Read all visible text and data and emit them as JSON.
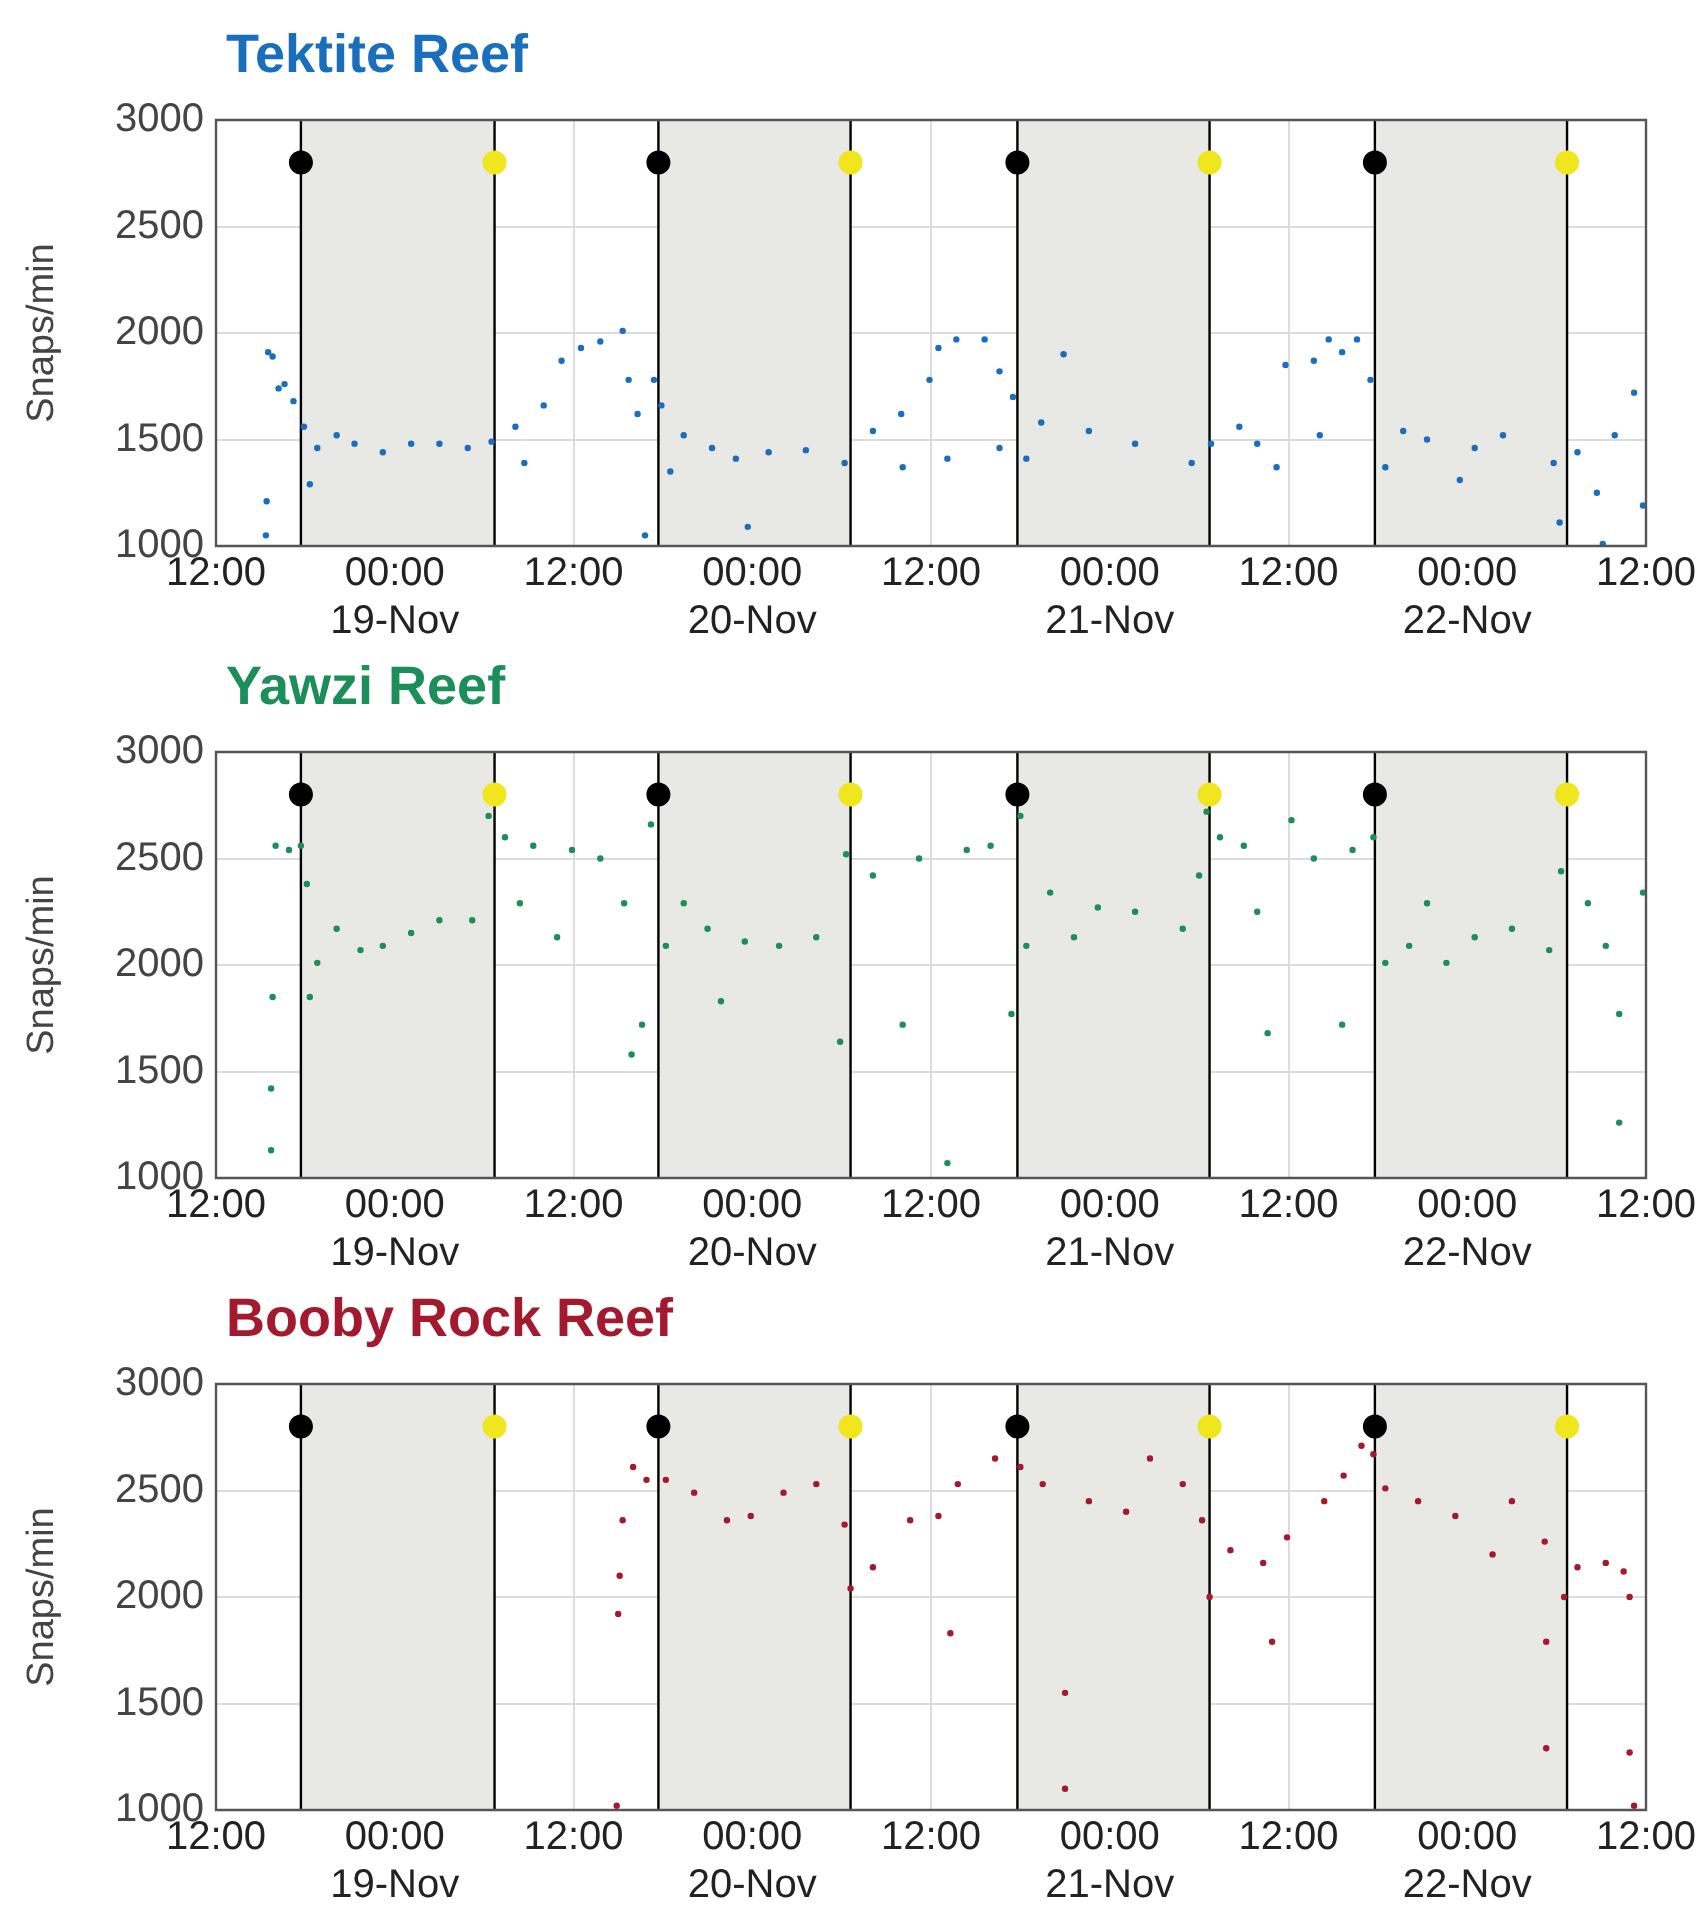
{
  "chart_data": [
    {
      "type": "scatter",
      "title": "Tektite Reef",
      "ylabel": "Snaps/min",
      "xlim": [
        "--11-18T12:00",
        "--11-22T12:00"
      ],
      "ylim": [
        1000,
        3000
      ],
      "yticks": [
        1000,
        1500,
        2000,
        2500,
        3000
      ],
      "xticks": [
        {
          "value": "--11-18T12:00",
          "label": "12:00"
        },
        {
          "value": "--11-19T00:00",
          "label": "00:00\n19-Nov"
        },
        {
          "value": "--11-19T12:00",
          "label": "12:00"
        },
        {
          "value": "--11-20T00:00",
          "label": "00:00\n20-Nov"
        },
        {
          "value": "--11-20T12:00",
          "label": "12:00"
        },
        {
          "value": "--11-21T00:00",
          "label": "00:00\n21-Nov"
        },
        {
          "value": "--11-21T12:00",
          "label": "12:00"
        },
        {
          "value": "--11-22T00:00",
          "label": "00:00\n22-Nov"
        },
        {
          "value": "--11-22T12:00",
          "label": "12:00"
        }
      ],
      "grid": true,
      "marker": "circle",
      "bands": [
        {
          "axis": "x",
          "from": "--11-18T17:42",
          "to": "--11-19T06:42",
          "color": "#e8e8e4"
        },
        {
          "axis": "x",
          "from": "--11-19T17:42",
          "to": "--11-20T06:36",
          "color": "#e8e8e4"
        },
        {
          "axis": "x",
          "from": "--11-20T17:48",
          "to": "--11-21T06:42",
          "color": "#e8e8e4"
        },
        {
          "axis": "x",
          "from": "--11-21T17:48",
          "to": "--11-22T06:42",
          "color": "#e8e8e4"
        }
      ],
      "series": [
        {
          "color": "#1a6fbd",
          "x": [
            "--11-18T15:21",
            "--11-18T15:24",
            "--11-18T15:30",
            "--11-18T15:48",
            "--11-18T16:12",
            "--11-18T16:36",
            "--11-18T17:12",
            "--11-18T17:54",
            "--11-18T18:18",
            "--11-18T18:48",
            "--11-18T20:06",
            "--11-18T21:18",
            "--11-18T23:12",
            "--11-19T01:06",
            "--11-19T03:00",
            "--11-19T04:54",
            "--11-19T06:30",
            "--11-19T08:06",
            "--11-19T08:42",
            "--11-19T10:00",
            "--11-19T11:12",
            "--11-19T12:30",
            "--11-19T13:48",
            "--11-19T15:18",
            "--11-19T15:42",
            "--11-19T16:18",
            "--11-19T16:48",
            "--11-19T17:24",
            "--11-19T17:54",
            "--11-19T18:30",
            "--11-19T19:24",
            "--11-19T21:18",
            "--11-19T22:54",
            "--11-19T23:42",
            "--11-20T01:06",
            "--11-20T03:36",
            "--11-20T06:12",
            "--11-20T08:06",
            "--11-20T10:00",
            "--11-20T10:06",
            "--11-20T11:54",
            "--11-20T12:30",
            "--11-20T13:06",
            "--11-20T13:42",
            "--11-20T15:36",
            "--11-20T16:36",
            "--11-20T16:36",
            "--11-20T17:30",
            "--11-20T18:24",
            "--11-20T19:24",
            "--11-20T20:54",
            "--11-20T22:36",
            "--11-21T01:42",
            "--11-21T05:30",
            "--11-21T06:48",
            "--11-21T08:42",
            "--11-21T09:54",
            "--11-21T11:12",
            "--11-21T11:48",
            "--11-21T13:42",
            "--11-21T14:06",
            "--11-21T14:42",
            "--11-21T15:36",
            "--11-21T16:36",
            "--11-21T17:30",
            "--11-21T18:30",
            "--11-21T19:42",
            "--11-21T21:18",
            "--11-21T23:30",
            "--11-22T00:30",
            "--11-22T02:24",
            "--11-22T05:48",
            "--11-22T06:12",
            "--11-22T07:24",
            "--11-22T08:42",
            "--11-22T09:06",
            "--11-22T09:54",
            "--11-22T11:12",
            "--11-22T11:48"
          ],
          "values": [
            1050,
            1210,
            1910,
            1890,
            1740,
            1760,
            1680,
            1560,
            1290,
            1460,
            1520,
            1480,
            1440,
            1480,
            1480,
            1460,
            1490,
            1560,
            1390,
            1660,
            1870,
            1930,
            1960,
            2010,
            1780,
            1620,
            1050,
            1780,
            1660,
            1350,
            1520,
            1460,
            1410,
            1090,
            1440,
            1450,
            1390,
            1540,
            1620,
            1370,
            1780,
            1930,
            1410,
            1970,
            1970,
            1820,
            1460,
            1700,
            1410,
            1580,
            1900,
            1540,
            1480,
            1390,
            1480,
            1560,
            1480,
            1370,
            1850,
            1870,
            1520,
            1970,
            1910,
            1970,
            1780,
            1370,
            1540,
            1500,
            1310,
            1460,
            1520,
            1390,
            1110,
            1440,
            1250,
            1010,
            1520,
            1720,
            1190
          ]
        },
        {
          "color": "#000000",
          "x": [
            "--11-18T17:42",
            "--11-19T17:42",
            "--11-20T17:48",
            "--11-21T17:48"
          ],
          "values": [
            2800,
            2800,
            2800,
            2800
          ]
        },
        {
          "color": "#f0e61e",
          "x": [
            "--11-19T06:42",
            "--11-20T06:36",
            "--11-21T06:42",
            "--11-22T06:42"
          ],
          "values": [
            2800,
            2800,
            2800,
            2800
          ]
        }
      ]
    },
    {
      "type": "scatter",
      "title": "Yawzi Reef",
      "ylabel": "Snaps/min",
      "xlim": [
        "--11-18T12:00",
        "--11-22T12:00"
      ],
      "ylim": [
        1000,
        3000
      ],
      "yticks": [
        1000,
        1500,
        2000,
        2500,
        3000
      ],
      "xticks": [
        {
          "value": "--11-18T12:00",
          "label": "12:00"
        },
        {
          "value": "--11-19T00:00",
          "label": "00:00\n19-Nov"
        },
        {
          "value": "--11-19T12:00",
          "label": "12:00"
        },
        {
          "value": "--11-20T00:00",
          "label": "00:00\n20-Nov"
        },
        {
          "value": "--11-20T12:00",
          "label": "12:00"
        },
        {
          "value": "--11-21T00:00",
          "label": "00:00\n21-Nov"
        },
        {
          "value": "--11-21T12:00",
          "label": "12:00"
        },
        {
          "value": "--11-22T00:00",
          "label": "00:00\n22-Nov"
        },
        {
          "value": "--11-22T12:00",
          "label": "12:00"
        }
      ],
      "grid": true,
      "marker": "circle",
      "bands": [
        {
          "axis": "x",
          "from": "--11-18T17:42",
          "to": "--11-19T06:42",
          "color": "#e8e8e4"
        },
        {
          "axis": "x",
          "from": "--11-19T17:42",
          "to": "--11-20T06:36",
          "color": "#e8e8e4"
        },
        {
          "axis": "x",
          "from": "--11-20T17:48",
          "to": "--11-21T06:42",
          "color": "#e8e8e4"
        },
        {
          "axis": "x",
          "from": "--11-21T17:48",
          "to": "--11-22T06:42",
          "color": "#e8e8e4"
        }
      ],
      "series": [
        {
          "color": "#1b8e5a",
          "x": [
            "--11-18T15:42",
            "--11-18T15:42",
            "--11-18T15:48",
            "--11-18T16:00",
            "--11-18T16:54",
            "--11-18T17:42",
            "--11-18T18:06",
            "--11-18T18:18",
            "--11-18T18:48",
            "--11-18T20:06",
            "--11-18T21:42",
            "--11-18T23:12",
            "--11-19T01:06",
            "--11-19T03:00",
            "--11-19T05:12",
            "--11-19T06:18",
            "--11-19T07:24",
            "--11-19T08:24",
            "--11-19T09:18",
            "--11-19T10:54",
            "--11-19T11:54",
            "--11-19T13:48",
            "--11-19T15:24",
            "--11-19T15:54",
            "--11-19T16:36",
            "--11-19T17:12",
            "--11-19T18:12",
            "--11-19T19:24",
            "--11-19T21:00",
            "--11-19T21:54",
            "--11-19T23:30",
            "--11-20T01:48",
            "--11-20T04:18",
            "--11-20T05:54",
            "--11-20T06:18",
            "--11-20T08:06",
            "--11-20T10:06",
            "--11-20T11:12",
            "--11-20T13:06",
            "--11-20T14:24",
            "--11-20T16:00",
            "--11-20T17:24",
            "--11-20T18:00",
            "--11-20T18:24",
            "--11-20T20:00",
            "--11-20T21:36",
            "--11-20T23:12",
            "--11-21T01:42",
            "--11-21T04:54",
            "--11-21T06:00",
            "--11-21T06:30",
            "--11-21T07:24",
            "--11-21T09:00",
            "--11-21T09:54",
            "--11-21T10:36",
            "--11-21T12:12",
            "--11-21T13:42",
            "--11-21T15:36",
            "--11-21T16:18",
            "--11-21T17:42",
            "--11-21T18:30",
            "--11-21T20:06",
            "--11-21T21:18",
            "--11-21T22:36",
            "--11-22T00:30",
            "--11-22T03:00",
            "--11-22T05:30",
            "--11-22T06:18",
            "--11-22T08:06",
            "--11-22T09:18",
            "--11-22T10:12",
            "--11-22T10:12",
            "--11-22T11:48"
          ],
          "values": [
            1130,
            1420,
            1850,
            2560,
            2540,
            2560,
            2380,
            1850,
            2010,
            2170,
            2070,
            2090,
            2150,
            2210,
            2210,
            2700,
            2600,
            2290,
            2560,
            2130,
            2540,
            2500,
            2290,
            1580,
            1720,
            2660,
            2090,
            2290,
            2170,
            1830,
            2110,
            2090,
            2130,
            1640,
            2520,
            2420,
            1720,
            2500,
            1070,
            2540,
            2560,
            1770,
            2700,
            2090,
            2340,
            2130,
            2270,
            2250,
            2170,
            2420,
            2720,
            2600,
            2560,
            2250,
            1680,
            2680,
            2500,
            1720,
            2540,
            2600,
            2010,
            2090,
            2290,
            2010,
            2130,
            2170,
            2070,
            2440,
            2290,
            2090,
            1770,
            1260,
            2340
          ]
        },
        {
          "color": "#000000",
          "x": [
            "--11-18T17:42",
            "--11-19T17:42",
            "--11-20T17:48",
            "--11-21T17:48"
          ],
          "values": [
            2800,
            2800,
            2800,
            2800
          ]
        },
        {
          "color": "#f0e61e",
          "x": [
            "--11-19T06:42",
            "--11-20T06:36",
            "--11-21T06:42",
            "--11-22T06:42"
          ],
          "values": [
            2800,
            2800,
            2800,
            2800
          ]
        }
      ]
    },
    {
      "type": "scatter",
      "title": "Booby Rock Reef",
      "ylabel": "Snaps/min",
      "xlim": [
        "--11-18T12:00",
        "--11-22T12:00"
      ],
      "ylim": [
        1000,
        3000
      ],
      "yticks": [
        1000,
        1500,
        2000,
        2500,
        3000
      ],
      "xticks": [
        {
          "value": "--11-18T12:00",
          "label": "12:00"
        },
        {
          "value": "--11-19T00:00",
          "label": "00:00\n19-Nov"
        },
        {
          "value": "--11-19T12:00",
          "label": "12:00"
        },
        {
          "value": "--11-20T00:00",
          "label": "00:00\n20-Nov"
        },
        {
          "value": "--11-20T12:00",
          "label": "12:00"
        },
        {
          "value": "--11-21T00:00",
          "label": "00:00\n21-Nov"
        },
        {
          "value": "--11-21T12:00",
          "label": "12:00"
        },
        {
          "value": "--11-22T00:00",
          "label": "00:00\n22-Nov"
        },
        {
          "value": "--11-22T12:00",
          "label": "12:00"
        }
      ],
      "grid": true,
      "marker": "circle",
      "bands": [
        {
          "axis": "x",
          "from": "--11-18T17:42",
          "to": "--11-19T06:42",
          "color": "#e8e8e4"
        },
        {
          "axis": "x",
          "from": "--11-19T17:42",
          "to": "--11-20T06:36",
          "color": "#e8e8e4"
        },
        {
          "axis": "x",
          "from": "--11-20T17:48",
          "to": "--11-21T06:42",
          "color": "#e8e8e4"
        },
        {
          "axis": "x",
          "from": "--11-21T17:48",
          "to": "--11-22T06:42",
          "color": "#e8e8e4"
        }
      ],
      "series": [
        {
          "color": "#a3192e",
          "x": [
            "--11-19T14:54",
            "--11-19T15:00",
            "--11-19T15:06",
            "--11-19T15:18",
            "--11-19T16:00",
            "--11-19T16:54",
            "--11-19T18:12",
            "--11-19T20:06",
            "--11-19T22:18",
            "--11-19T23:54",
            "--11-20T02:06",
            "--11-20T04:18",
            "--11-20T06:12",
            "--11-20T06:36",
            "--11-20T08:06",
            "--11-20T10:36",
            "--11-20T12:30",
            "--11-20T13:18",
            "--11-20T13:48",
            "--11-20T16:18",
            "--11-20T18:00",
            "--11-20T19:30",
            "--11-20T21:00",
            "--11-20T21:00",
            "--11-20T22:36",
            "--11-21T01:06",
            "--11-21T02:42",
            "--11-21T04:54",
            "--11-21T06:12",
            "--11-21T06:42",
            "--11-21T08:06",
            "--11-21T10:18",
            "--11-21T10:54",
            "--11-21T11:54",
            "--11-21T14:24",
            "--11-21T15:42",
            "--11-21T16:54",
            "--11-21T17:42",
            "--11-21T18:30",
            "--11-21T20:42",
            "--11-21T23:12",
            "--11-22T01:42",
            "--11-22T03:00",
            "--11-22T05:12",
            "--11-22T05:18",
            "--11-22T05:18",
            "--11-22T06:30",
            "--11-22T07:24",
            "--11-22T09:18",
            "--11-22T10:30",
            "--11-22T10:54",
            "--11-22T10:54",
            "--11-22T11:12"
          ],
          "values": [
            1020,
            1920,
            2100,
            2360,
            2610,
            2550,
            2550,
            2490,
            2360,
            2380,
            2490,
            2530,
            2340,
            2040,
            2140,
            2360,
            2380,
            1830,
            2530,
            2650,
            2610,
            2530,
            1100,
            1550,
            2450,
            2400,
            2650,
            2530,
            2360,
            2000,
            2220,
            2160,
            1790,
            2280,
            2450,
            2570,
            2710,
            2670,
            2510,
            2450,
            2380,
            2200,
            2450,
            2260,
            1790,
            1290,
            2000,
            2140,
            2160,
            2120,
            2000,
            1270,
            1020
          ]
        },
        {
          "color": "#000000",
          "x": [
            "--11-18T17:42",
            "--11-19T17:42",
            "--11-20T17:48",
            "--11-21T17:48"
          ],
          "values": [
            2800,
            2800,
            2800,
            2800
          ]
        },
        {
          "color": "#f0e61e",
          "x": [
            "--11-19T06:42",
            "--11-20T06:36",
            "--11-21T06:42",
            "--11-22T06:42"
          ],
          "values": [
            2800,
            2800,
            2800,
            2800
          ]
        }
      ]
    }
  ]
}
